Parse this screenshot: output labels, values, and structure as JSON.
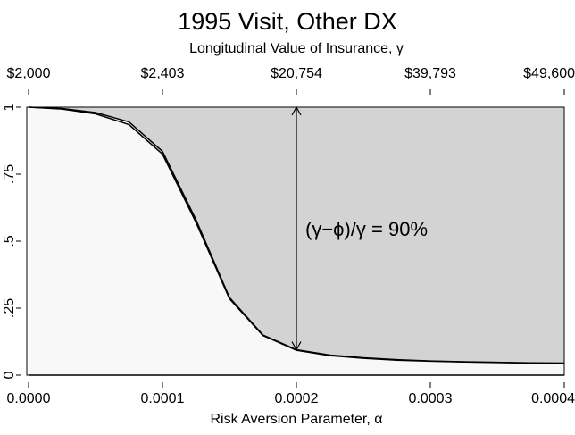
{
  "chart_data": {
    "type": "line",
    "title": "1995 Visit, Other DX",
    "x2label": "Longitudinal Value of Insurance, γ",
    "xlabel": "Risk Aversion Parameter, α",
    "x": [
      0,
      2.5e-05,
      5e-05,
      7.5e-05,
      0.0001,
      0.000125,
      0.00015,
      0.000175,
      0.0002,
      0.000225,
      0.00025,
      0.000275,
      0.0003,
      0.000325,
      0.00035,
      0.000375,
      0.0004
    ],
    "series": [
      {
        "color": "#000000",
        "values": [
          1,
          0.995,
          0.98,
          0.945,
          0.835,
          0.58,
          0.29,
          0.15,
          0.095,
          0.075,
          0.065,
          0.058,
          0.053,
          0.05,
          0.048,
          0.046,
          0.045
        ]
      },
      {
        "color": "#000000",
        "values": [
          1,
          0.993,
          0.975,
          0.935,
          0.825,
          0.57,
          0.285,
          0.148,
          0.093,
          0.073,
          0.063,
          0.056,
          0.052,
          0.049,
          0.047,
          0.045,
          0.044
        ]
      }
    ],
    "fill_above": "#d3d3d3",
    "fill_below": "#f8f8f8",
    "xlim": [
      0,
      0.0004
    ],
    "ylim": [
      0,
      1
    ],
    "xticks": [
      {
        "value": 0,
        "label": "0.0000"
      },
      {
        "value": 0.0001,
        "label": "0.0001"
      },
      {
        "value": 0.0002,
        "label": "0.0002"
      },
      {
        "value": 0.0003,
        "label": "0.0003"
      },
      {
        "value": 0.0004,
        "label": "0.0004"
      }
    ],
    "x2ticks": [
      {
        "value": 0,
        "label": "$2,000"
      },
      {
        "value": 0.0001,
        "label": "$2,403"
      },
      {
        "value": 0.0002,
        "label": "$20,754"
      },
      {
        "value": 0.0003,
        "label": "$39,793"
      },
      {
        "value": 0.0004,
        "label": "$49,600"
      }
    ],
    "yticks": [
      0,
      {
        "value": 0.25,
        "label": ".25"
      },
      {
        "value": 0.5,
        "label": ".5"
      },
      {
        "value": 0.75,
        "label": ".75"
      },
      1
    ],
    "annotation": {
      "text": "(γ−ϕ)/γ = 90%",
      "x": 0.0002,
      "y_from": 1,
      "y_to": 0.095
    }
  }
}
